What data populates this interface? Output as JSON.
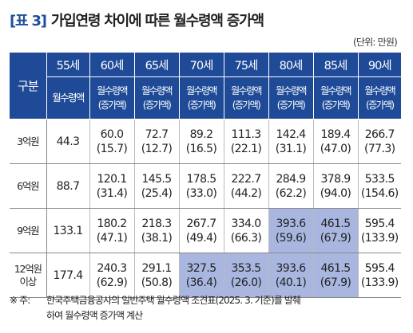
{
  "title": {
    "tag": "[표 3]",
    "text": "가입연령 차이에 따른 월수령액 증가액"
  },
  "unit": "(단위: 만원)",
  "table": {
    "gubun": "구분",
    "ages": [
      "55세",
      "60세",
      "65세",
      "70세",
      "75세",
      "80세",
      "85세",
      "90세"
    ],
    "sub_first": "월수령액",
    "sub_label": "월수령액",
    "sub_paren": "(증가액)",
    "rows": [
      {
        "label": "3억원",
        "base": "44.3",
        "cells": [
          [
            "60.0",
            "(15.7)"
          ],
          [
            "72.7",
            "(12.7)"
          ],
          [
            "89.2",
            "(16.5)"
          ],
          [
            "111.3",
            "(22.1)"
          ],
          [
            "142.4",
            "(31.1)"
          ],
          [
            "189.4",
            "(47.0)"
          ],
          [
            "266.7",
            "(77.3)"
          ]
        ]
      },
      {
        "label": "6억원",
        "base": "88.7",
        "cells": [
          [
            "120.1",
            "(31.4)"
          ],
          [
            "145.5",
            "(25.4)"
          ],
          [
            "178.5",
            "(33.0)"
          ],
          [
            "222.7",
            "(44.2)"
          ],
          [
            "284.9",
            "(62.2)"
          ],
          [
            "378.9",
            "(94.0)"
          ],
          [
            "533.5",
            "(154.6)"
          ]
        ]
      },
      {
        "label": "9억원",
        "base": "133.1",
        "cells": [
          [
            "180.2",
            "(47.1)"
          ],
          [
            "218.3",
            "(38.1)"
          ],
          [
            "267.7",
            "(49.4)"
          ],
          [
            "334.0",
            "(66.3)"
          ],
          [
            "393.6",
            "(59.6)"
          ],
          [
            "461.5",
            "(67.9)"
          ],
          [
            "595.4",
            "(133.9)"
          ]
        ]
      },
      {
        "label1": "12억원",
        "label2": "이상",
        "base": "177.4",
        "cells": [
          [
            "240.3",
            "(62.9)"
          ],
          [
            "291.1",
            "(50.8)"
          ],
          [
            "327.5",
            "(36.4)"
          ],
          [
            "353.5",
            "(26.0)"
          ],
          [
            "393.6",
            "(40.1)"
          ],
          [
            "461.5",
            "(67.9)"
          ],
          [
            "595.4",
            "(133.9)"
          ]
        ]
      }
    ],
    "highlight_color": "#a9b7e0",
    "header_color": "#1e4a97"
  },
  "note": {
    "mark": "※ 주:",
    "line1": "한국주택금융공사의 일반주택 월수령액 조견표(2025. 3. 기준)를 발췌",
    "line2": "하여 월수령액 증가액 계산"
  }
}
